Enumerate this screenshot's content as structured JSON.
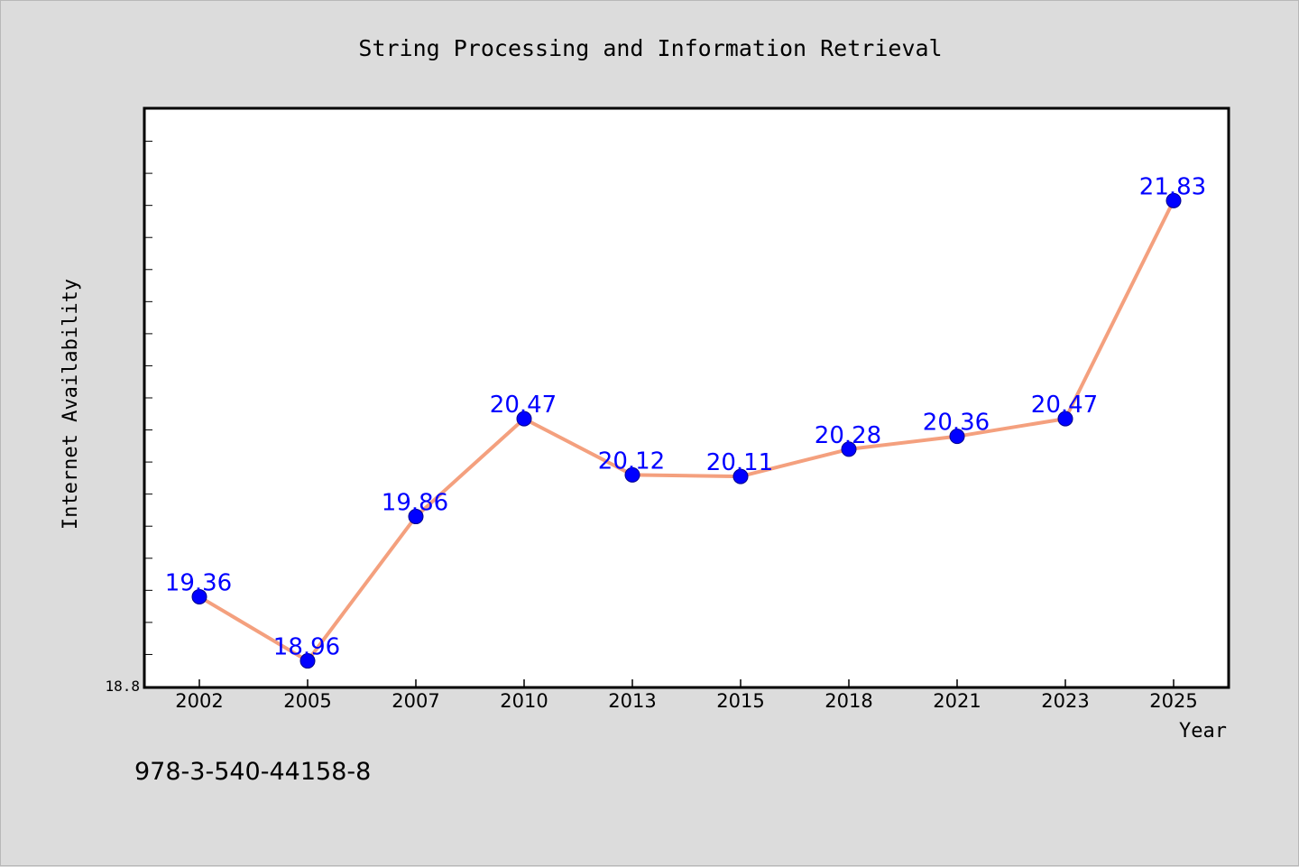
{
  "footer_text": "978-3-540-44158-8",
  "colors": {
    "background": "#dcdcdc",
    "plot_background": "#ffffff",
    "line": "#f4a07e",
    "marker": "#0000ff",
    "label": "#0000ff",
    "axis": "#000000"
  },
  "chart_data": {
    "type": "line",
    "title": "String Processing and Information Retrieval",
    "xlabel": "Year",
    "ylabel": "Internet Availability",
    "categories": [
      "2002",
      "2005",
      "2007",
      "2010",
      "2013",
      "2015",
      "2018",
      "2021",
      "2023",
      "2025"
    ],
    "series": [
      {
        "values": [
          19.36,
          18.96,
          19.86,
          20.47,
          20.12,
          20.11,
          20.28,
          20.36,
          20.47,
          21.83
        ],
        "labels": [
          "19.36",
          "18.96",
          "19.86",
          "20.47",
          "20.12",
          "20.11",
          "20.28",
          "20.36",
          "20.47",
          "21.83"
        ]
      }
    ],
    "y_tick_labels": [
      "18.8"
    ],
    "ylim": [
      18.8,
      22.4
    ],
    "y_minor_tick_step": 0.2,
    "grid": false,
    "legend": "none"
  }
}
